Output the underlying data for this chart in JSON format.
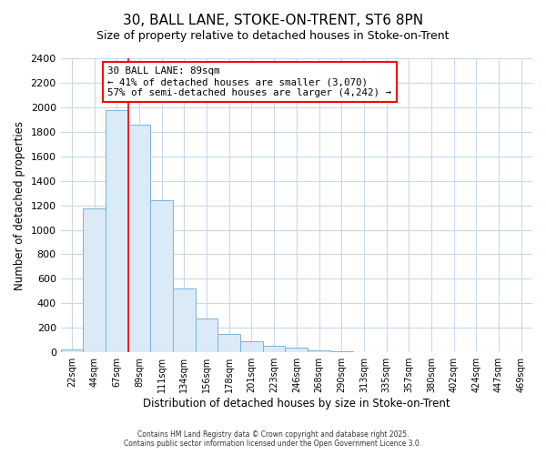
{
  "title": "30, BALL LANE, STOKE-ON-TRENT, ST6 8PN",
  "subtitle": "Size of property relative to detached houses in Stoke-on-Trent",
  "xlabel": "Distribution of detached houses by size in Stoke-on-Trent",
  "ylabel": "Number of detached properties",
  "bins": [
    "22sqm",
    "44sqm",
    "67sqm",
    "89sqm",
    "111sqm",
    "134sqm",
    "156sqm",
    "178sqm",
    "201sqm",
    "223sqm",
    "246sqm",
    "268sqm",
    "290sqm",
    "313sqm",
    "335sqm",
    "357sqm",
    "380sqm",
    "402sqm",
    "424sqm",
    "447sqm",
    "469sqm"
  ],
  "values": [
    25,
    1175,
    1975,
    1855,
    1245,
    520,
    275,
    150,
    88,
    50,
    35,
    15,
    8,
    3,
    2,
    1,
    1,
    1,
    0,
    0,
    0
  ],
  "bar_color": "#daeaf7",
  "bar_edge_color": "#7ab3d9",
  "red_line_index": 3,
  "annotation_title": "30 BALL LANE: 89sqm",
  "annotation_line1": "← 41% of detached houses are smaller (3,070)",
  "annotation_line2": "57% of semi-detached houses are larger (4,242) →",
  "ylim": [
    0,
    2400
  ],
  "yticks": [
    0,
    200,
    400,
    600,
    800,
    1000,
    1200,
    1400,
    1600,
    1800,
    2000,
    2200,
    2400
  ],
  "footer1": "Contains HM Land Registry data © Crown copyright and database right 2025.",
  "footer2": "Contains public sector information licensed under the Open Government Licence 3.0.",
  "bg_color": "#ffffff",
  "plot_bg_color": "#ffffff",
  "grid_color": "#c8d8f0",
  "title_fontsize": 11,
  "subtitle_fontsize": 9
}
